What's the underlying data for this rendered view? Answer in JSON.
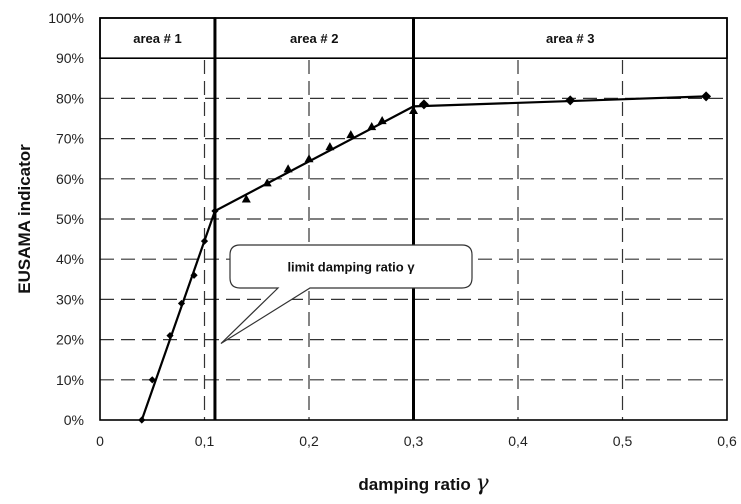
{
  "chart_data": {
    "type": "scatter",
    "xlabel": "damping ratio",
    "xlabel_symbol": "γ",
    "ylabel": "EUSAMA indicator",
    "xlim": [
      0,
      0.6
    ],
    "ylim": [
      0,
      100
    ],
    "x_ticks": [
      "0",
      "0,1",
      "0,2",
      "0,3",
      "0,4",
      "0,5",
      "0,6"
    ],
    "y_ticks": [
      "0%",
      "10%",
      "20%",
      "30%",
      "40%",
      "50%",
      "60%",
      "70%",
      "80%",
      "90%",
      "100%"
    ],
    "grid": true,
    "regions": [
      {
        "label": "area # 1",
        "x_start": 0,
        "x_end": 0.11
      },
      {
        "label": "area # 2",
        "x_start": 0.11,
        "x_end": 0.3
      },
      {
        "label": "area # 3",
        "x_start": 0.3,
        "x_end": 0.6
      }
    ],
    "boundary_lines_x": [
      0.11,
      0.3
    ],
    "annotation": {
      "text": "limit damping ratio γ",
      "points_to": [
        0.11,
        23
      ]
    },
    "series": [
      {
        "marker": "diamond-small",
        "points": [
          [
            0.04,
            0
          ],
          [
            0.05,
            10
          ],
          [
            0.067,
            21
          ],
          [
            0.078,
            29
          ],
          [
            0.09,
            36
          ],
          [
            0.1,
            44.5
          ],
          [
            0.11,
            52
          ]
        ]
      },
      {
        "marker": "triangle",
        "points": [
          [
            0.14,
            55
          ],
          [
            0.16,
            59
          ],
          [
            0.18,
            62.5
          ],
          [
            0.2,
            65
          ],
          [
            0.22,
            68
          ],
          [
            0.24,
            71
          ],
          [
            0.26,
            73
          ],
          [
            0.27,
            74.5
          ],
          [
            0.3,
            77
          ]
        ]
      },
      {
        "marker": "diamond",
        "points": [
          [
            0.31,
            78.5
          ],
          [
            0.45,
            79.5
          ],
          [
            0.58,
            80.5
          ]
        ]
      }
    ],
    "trend_line": [
      [
        0.04,
        0
      ],
      [
        0.11,
        52
      ],
      [
        0.3,
        78
      ],
      [
        0.58,
        80.5
      ]
    ]
  }
}
